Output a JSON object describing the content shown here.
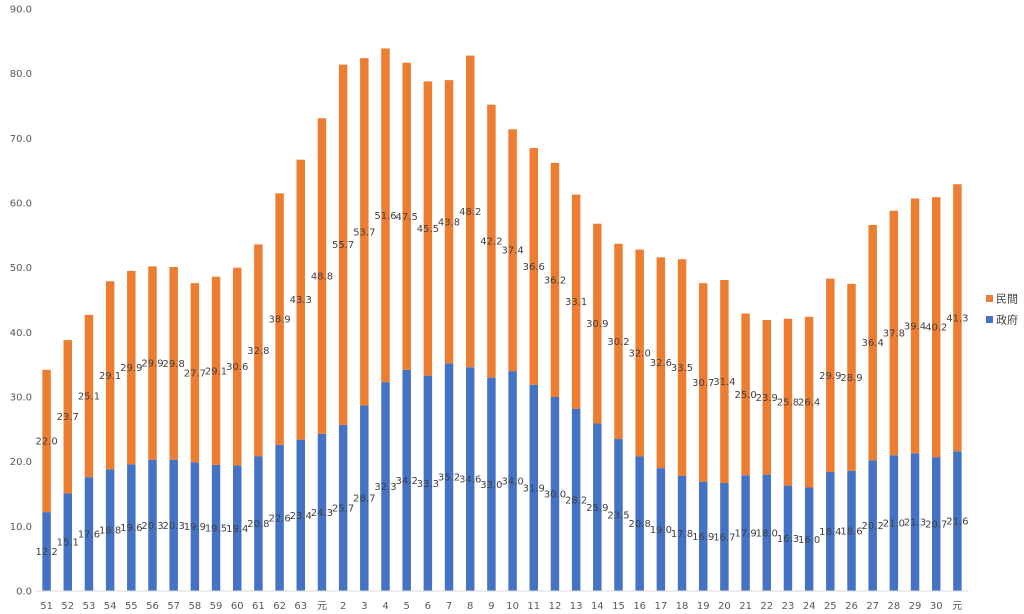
{
  "chart_data": {
    "type": "bar",
    "stacked": true,
    "categories": [
      "51",
      "52",
      "53",
      "54",
      "55",
      "56",
      "57",
      "58",
      "59",
      "60",
      "61",
      "62",
      "63",
      "元",
      "2",
      "3",
      "4",
      "5",
      "6",
      "7",
      "8",
      "9",
      "10",
      "11",
      "12",
      "13",
      "14",
      "15",
      "16",
      "17",
      "18",
      "19",
      "20",
      "21",
      "22",
      "23",
      "24",
      "25",
      "26",
      "27",
      "28",
      "29",
      "30",
      "元"
    ],
    "series": [
      {
        "name": "政府",
        "color": "#4472C4",
        "values": [
          12.2,
          15.1,
          17.6,
          18.8,
          19.6,
          20.3,
          20.3,
          19.9,
          19.5,
          19.4,
          20.8,
          22.6,
          23.4,
          24.3,
          25.7,
          28.7,
          32.3,
          34.2,
          33.3,
          35.2,
          34.6,
          33.0,
          34.0,
          31.9,
          30.0,
          28.2,
          25.9,
          23.5,
          20.8,
          19.0,
          17.8,
          16.9,
          16.7,
          17.9,
          18.0,
          16.3,
          16.0,
          18.4,
          18.6,
          20.2,
          21.0,
          21.3,
          20.7,
          21.6
        ]
      },
      {
        "name": "民間",
        "color": "#ED7D31",
        "values": [
          22.0,
          23.7,
          25.1,
          29.1,
          29.9,
          29.9,
          29.8,
          27.7,
          29.1,
          30.6,
          32.8,
          38.9,
          43.3,
          48.8,
          55.7,
          53.7,
          51.6,
          47.5,
          45.5,
          43.8,
          48.2,
          42.2,
          37.4,
          36.6,
          36.2,
          33.1,
          30.9,
          30.2,
          32.0,
          32.6,
          33.5,
          30.7,
          31.4,
          25.0,
          23.9,
          25.8,
          26.4,
          29.9,
          28.9,
          36.4,
          37.8,
          39.4,
          40.2,
          41.3
        ]
      }
    ],
    "ylim": [
      0,
      90
    ],
    "yticks": [
      "0.0",
      "10.0",
      "20.0",
      "30.0",
      "40.0",
      "50.0",
      "60.0",
      "70.0",
      "80.0",
      "90.0"
    ],
    "grid": false,
    "legend_position": "right",
    "data_labels": true
  }
}
